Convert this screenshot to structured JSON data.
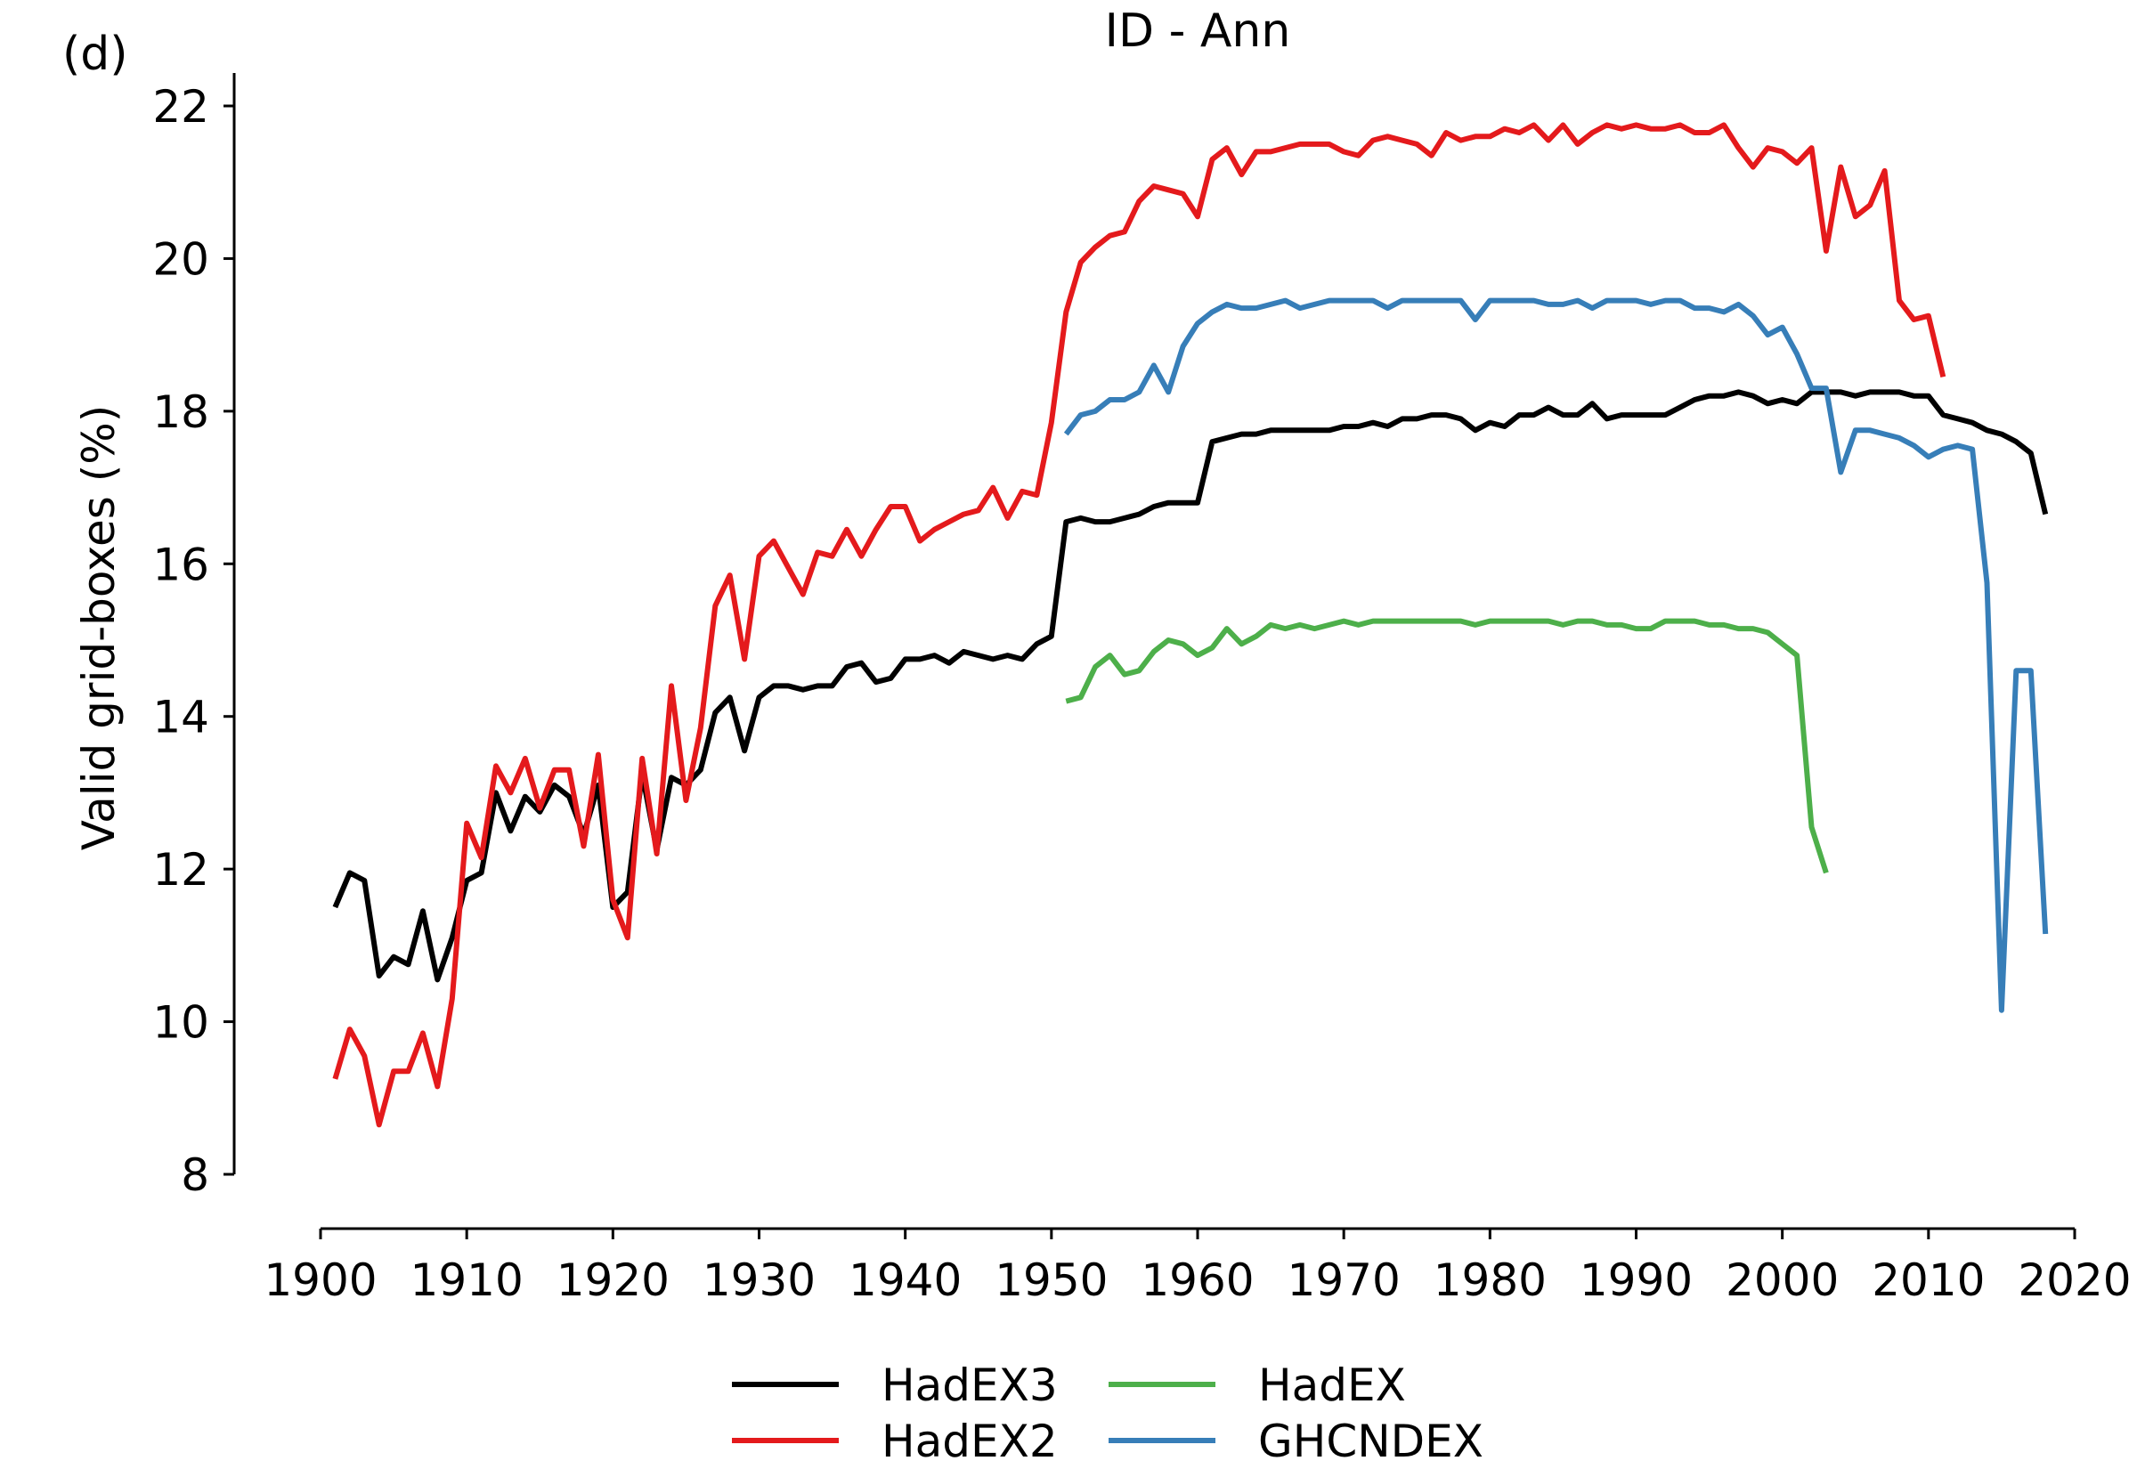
{
  "chart_data": {
    "type": "line",
    "panel_label": "(d)",
    "title": "ID - Ann",
    "xlabel": "",
    "ylabel": "Valid grid-boxes (%)",
    "xlim": [
      1900,
      2020
    ],
    "ylim": [
      8,
      22
    ],
    "x_ticks": [
      1900,
      1910,
      1920,
      1930,
      1940,
      1950,
      1960,
      1970,
      1980,
      1990,
      2000,
      2010,
      2020
    ],
    "y_ticks": [
      8,
      10,
      12,
      14,
      16,
      18,
      20,
      22
    ],
    "grid": false,
    "legend_position": "bottom-center",
    "series": [
      {
        "name": "HadEX3",
        "color": "#000000",
        "x_start": 1901,
        "values": [
          11.5,
          11.95,
          11.85,
          10.6,
          10.85,
          10.75,
          11.45,
          10.55,
          11.1,
          11.85,
          11.95,
          13.0,
          12.5,
          12.95,
          12.75,
          13.1,
          12.95,
          12.45,
          13.1,
          11.5,
          11.7,
          13.25,
          12.25,
          13.2,
          13.1,
          13.3,
          14.05,
          14.25,
          13.55,
          14.25,
          14.4,
          14.4,
          14.35,
          14.4,
          14.4,
          14.65,
          14.7,
          14.45,
          14.5,
          14.75,
          14.75,
          14.8,
          14.7,
          14.85,
          14.8,
          14.75,
          14.8,
          14.75,
          14.95,
          15.05,
          16.55,
          16.6,
          16.55,
          16.55,
          16.6,
          16.65,
          16.75,
          16.8,
          16.8,
          16.8,
          17.6,
          17.65,
          17.7,
          17.7,
          17.75,
          17.75,
          17.75,
          17.75,
          17.75,
          17.8,
          17.8,
          17.85,
          17.8,
          17.9,
          17.9,
          17.95,
          17.95,
          17.9,
          17.75,
          17.85,
          17.8,
          17.95,
          17.95,
          18.05,
          17.95,
          17.95,
          18.1,
          17.9,
          17.95,
          17.95,
          17.95,
          17.95,
          18.05,
          18.15,
          18.2,
          18.2,
          18.25,
          18.2,
          18.1,
          18.15,
          18.1,
          18.25,
          18.25,
          18.25,
          18.2,
          18.25,
          18.25,
          18.25,
          18.2,
          18.2,
          17.95,
          17.9,
          17.85,
          17.75,
          17.7,
          17.6,
          17.45,
          16.65
        ]
      },
      {
        "name": "HadEX2",
        "color": "#e41a1c",
        "x_start": 1901,
        "values": [
          9.25,
          9.9,
          9.55,
          8.65,
          9.35,
          9.35,
          9.85,
          9.15,
          10.3,
          12.6,
          12.15,
          13.35,
          13.0,
          13.45,
          12.8,
          13.3,
          13.3,
          12.3,
          13.5,
          11.6,
          11.1,
          13.45,
          12.2,
          14.4,
          12.9,
          13.85,
          15.45,
          15.85,
          14.75,
          16.1,
          16.3,
          15.95,
          15.6,
          16.15,
          16.1,
          16.45,
          16.1,
          16.45,
          16.75,
          16.75,
          16.3,
          16.45,
          16.55,
          16.65,
          16.7,
          17.0,
          16.6,
          16.95,
          16.9,
          17.85,
          19.3,
          19.95,
          20.15,
          20.3,
          20.35,
          20.75,
          20.95,
          20.9,
          20.85,
          20.55,
          21.3,
          21.45,
          21.1,
          21.4,
          21.4,
          21.45,
          21.5,
          21.5,
          21.5,
          21.4,
          21.35,
          21.55,
          21.6,
          21.55,
          21.5,
          21.35,
          21.65,
          21.55,
          21.6,
          21.6,
          21.7,
          21.65,
          21.75,
          21.55,
          21.75,
          21.5,
          21.65,
          21.75,
          21.7,
          21.75,
          21.7,
          21.7,
          21.75,
          21.65,
          21.65,
          21.75,
          21.45,
          21.2,
          21.45,
          21.4,
          21.25,
          21.45,
          20.1,
          21.2,
          20.55,
          20.7,
          21.15,
          19.45,
          19.2,
          19.25,
          18.45
        ]
      },
      {
        "name": "HadEX",
        "color": "#4daf4a",
        "x_start": 1951,
        "values": [
          14.2,
          14.25,
          14.65,
          14.8,
          14.55,
          14.6,
          14.85,
          15.0,
          14.95,
          14.8,
          14.9,
          15.15,
          14.95,
          15.05,
          15.2,
          15.15,
          15.2,
          15.15,
          15.2,
          15.25,
          15.2,
          15.25,
          15.25,
          15.25,
          15.25,
          15.25,
          15.25,
          15.25,
          15.2,
          15.25,
          15.25,
          15.25,
          15.25,
          15.25,
          15.2,
          15.25,
          15.25,
          15.2,
          15.2,
          15.15,
          15.15,
          15.25,
          15.25,
          15.25,
          15.2,
          15.2,
          15.15,
          15.15,
          15.1,
          14.95,
          14.8,
          12.55,
          11.95
        ]
      },
      {
        "name": "GHCNDEX",
        "color": "#377eb8",
        "x_start": 1951,
        "values": [
          17.7,
          17.95,
          18.0,
          18.15,
          18.15,
          18.25,
          18.6,
          18.25,
          18.85,
          19.15,
          19.3,
          19.4,
          19.35,
          19.35,
          19.4,
          19.45,
          19.35,
          19.4,
          19.45,
          19.45,
          19.45,
          19.45,
          19.35,
          19.45,
          19.45,
          19.45,
          19.45,
          19.45,
          19.2,
          19.45,
          19.45,
          19.45,
          19.45,
          19.4,
          19.4,
          19.45,
          19.35,
          19.45,
          19.45,
          19.45,
          19.4,
          19.45,
          19.45,
          19.35,
          19.35,
          19.3,
          19.4,
          19.25,
          19.0,
          19.1,
          18.75,
          18.3,
          18.3,
          17.2,
          17.75,
          17.75,
          17.7,
          17.65,
          17.55,
          17.4,
          17.5,
          17.55,
          17.5,
          15.75,
          10.15,
          14.6,
          14.6,
          11.15
        ]
      }
    ]
  }
}
